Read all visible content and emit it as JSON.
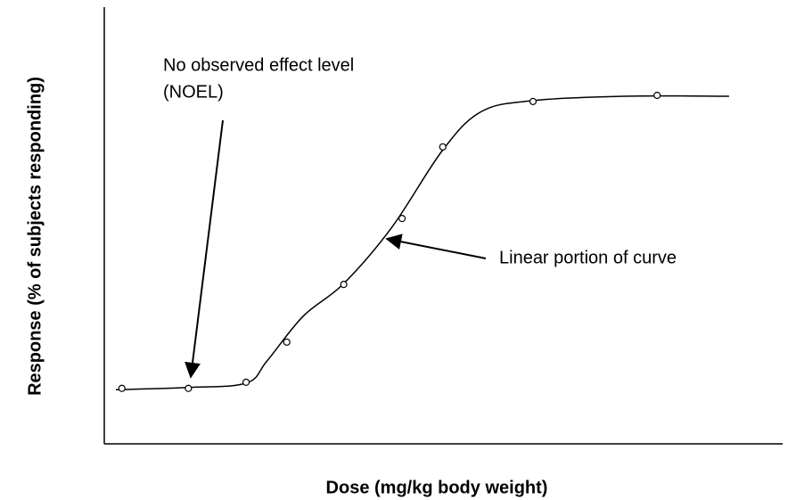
{
  "chart_data": {
    "type": "scatter",
    "xlabel": "Dose (mg/kg body weight)",
    "ylabel": "Response (% of subjects responding)",
    "xlim": [
      0,
      100
    ],
    "ylim": [
      0,
      100
    ],
    "color": "#000000",
    "points": {
      "x": [
        2.6,
        12.4,
        20.9,
        26.9,
        35.3,
        43.9,
        49.9,
        63.2,
        81.5
      ],
      "values": [
        12.7,
        12.7,
        14.1,
        23.3,
        36.5,
        51.6,
        68.0,
        78.4,
        79.8
      ]
    },
    "curve": {
      "x": [
        1.7,
        12.2,
        20.9,
        24.0,
        29.3,
        35.3,
        42.4,
        49.9,
        55.6,
        63.2,
        76.6,
        92.1
      ],
      "values": [
        12.4,
        12.9,
        13.9,
        19.0,
        29.2,
        36.7,
        49.6,
        67.3,
        76.1,
        78.6,
        79.6,
        79.6
      ]
    },
    "annotations": [
      {
        "text": [
          "No observed effect level",
          "(NOEL)"
        ]
      },
      {
        "text": "Linear portion of curve"
      }
    ]
  }
}
